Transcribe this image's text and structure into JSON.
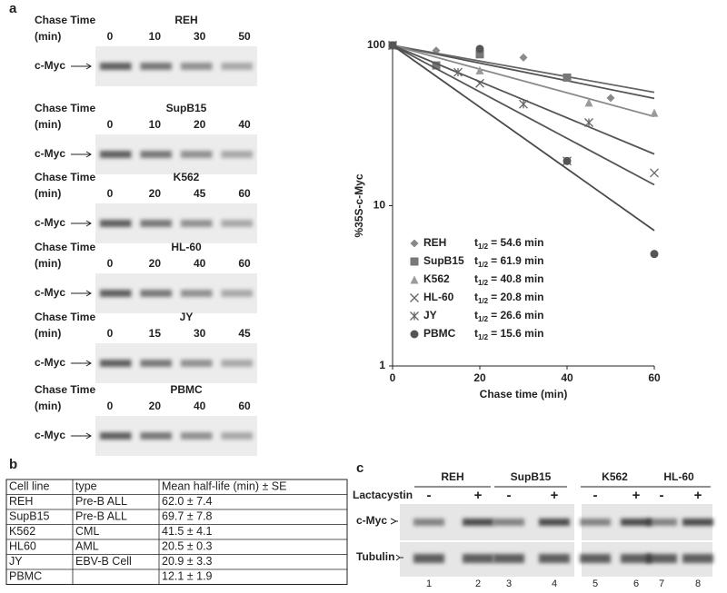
{
  "panel_labels": [
    "a",
    "b",
    "c"
  ],
  "blots": [
    {
      "title": "Chase Time",
      "unit": "(min)",
      "cell": "REH",
      "times": [
        "0",
        "10",
        "30",
        "50"
      ],
      "band_label": "c-Myc"
    },
    {
      "title": "Chase Time",
      "unit": "(min)",
      "cell": "SupB15",
      "times": [
        "0",
        "10",
        "20",
        "40"
      ],
      "band_label": "c-Myc"
    },
    {
      "title": "Chase Time",
      "unit": "(min)",
      "cell": "K562",
      "times": [
        "0",
        "20",
        "45",
        "60"
      ],
      "band_label": "c-Myc"
    },
    {
      "title": "Chase Time",
      "unit": "(min)",
      "cell": "HL-60",
      "times": [
        "0",
        "20",
        "40",
        "60"
      ],
      "band_label": "c-Myc"
    },
    {
      "title": "Chase Time",
      "unit": "(min)",
      "cell": "JY",
      "times": [
        "0",
        "15",
        "30",
        "45"
      ],
      "band_label": "c-Myc"
    },
    {
      "title": "Chase Time",
      "unit": "(min)",
      "cell": "PBMC",
      "times": [
        "0",
        "20",
        "40",
        "60"
      ],
      "band_label": "c-Myc"
    }
  ],
  "chart_data": {
    "type": "scatter",
    "xlabel": "Chase time (min)",
    "ylabel": "%35S-c-Myc",
    "xlim": [
      0,
      60
    ],
    "xticks": [
      0,
      20,
      40,
      60
    ],
    "ylim": [
      1,
      100
    ],
    "yticks": [
      1,
      10,
      100
    ],
    "log_y": true,
    "half_life_symbol": "t",
    "half_life_subscript": "1/2",
    "fit_x": [
      0,
      60
    ],
    "series": [
      {
        "name": "REH",
        "marker": "diamond",
        "color": "#8a8a8a",
        "line_color": "#555555",
        "x": [
          0,
          10,
          20,
          30,
          50
        ],
        "values": [
          100,
          93,
          92,
          84,
          47
        ],
        "fit": [
          100,
          46.7
        ],
        "half_life_label": "= 54.6 min"
      },
      {
        "name": "SupB15",
        "marker": "square",
        "color": "#777777",
        "line_color": "#666666",
        "x": [
          0,
          10,
          20,
          40
        ],
        "values": [
          100,
          75,
          88,
          63
        ],
        "fit": [
          100,
          51
        ],
        "half_life_label": "= 61.9 min"
      },
      {
        "name": "K562",
        "marker": "triangle",
        "color": "#9a9a9a",
        "line_color": "#8a8a8a",
        "x": [
          0,
          20,
          45,
          60
        ],
        "values": [
          100,
          70,
          44,
          38
        ],
        "fit": [
          100,
          36
        ],
        "half_life_label": "= 40.8 min"
      },
      {
        "name": "HL-60",
        "marker": "x",
        "color": "#666666",
        "line_color": "#555555",
        "x": [
          0,
          20,
          40,
          60
        ],
        "values": [
          100,
          58,
          19,
          16
        ],
        "fit": [
          100,
          13.5
        ],
        "half_life_label": "= 20.8 min"
      },
      {
        "name": "JY",
        "marker": "asterisk",
        "color": "#666666",
        "line_color": "#555555",
        "x": [
          0,
          15,
          30,
          45
        ],
        "values": [
          100,
          68,
          43,
          33
        ],
        "fit": [
          100,
          21
        ],
        "half_life_label": "= 26.6 min"
      },
      {
        "name": "PBMC",
        "marker": "circle",
        "color": "#555555",
        "line_color": "#4a4a4a",
        "x": [
          0,
          20,
          40,
          60
        ],
        "values": [
          100,
          95,
          19,
          5
        ],
        "fit": [
          100,
          7
        ],
        "half_life_label": "= 15.6 min"
      }
    ]
  },
  "table": {
    "header": [
      "Cell line",
      "type",
      "Mean half-life (min) ± SE"
    ],
    "rows": [
      [
        "REH",
        "Pre-B ALL",
        "62.0 ± 7.4"
      ],
      [
        "SupB15",
        "Pre-B ALL",
        "69.7 ± 7.8"
      ],
      [
        "K562",
        "CML",
        "41.5 ± 4.1"
      ],
      [
        "HL60",
        "AML",
        "20.5 ± 0.3"
      ],
      [
        "JY",
        "EBV-B Cell",
        "20.9 ± 3.3"
      ],
      [
        "PBMC",
        "",
        "12.1 ± 1.9"
      ]
    ]
  },
  "western": {
    "groups": [
      "REH",
      "SupB15",
      "K562",
      "HL-60"
    ],
    "treatment": "Lactacystin",
    "signs": [
      "-",
      "+",
      "-",
      "+",
      "-",
      "+",
      "-",
      "+"
    ],
    "rows": [
      "c-Myc",
      "Tubulin"
    ],
    "lanes": [
      "1",
      "2",
      "3",
      "4",
      "5",
      "6",
      "7",
      "8"
    ]
  }
}
